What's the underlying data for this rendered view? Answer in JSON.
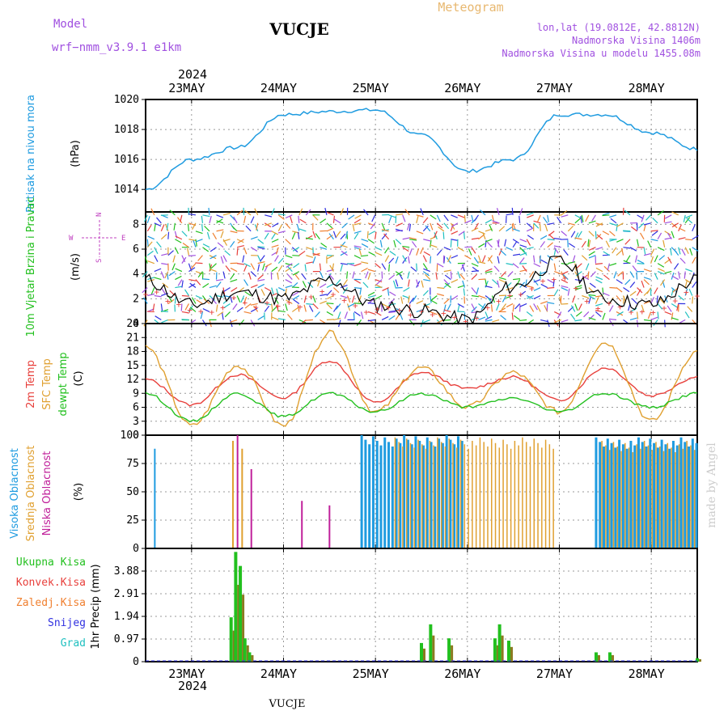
{
  "header": {
    "model_label": "Model",
    "model_name": "wrf−nmm_v3.9.1  e1km",
    "station": "VUCJE",
    "title": "Meteogram",
    "coords": "lon,lat (19.0812E, 42.8812N)",
    "elevation": "Nadmorska Visina 1406m",
    "model_elevation": "Nadmorska Visina u modelu 1455.08m",
    "footer_station": "VUCJE",
    "credit": "made by Angel",
    "year": "2024"
  },
  "colors": {
    "pressure": "#1e9be0",
    "temp2m": "#e8403c",
    "sfc_temp": "#e0a030",
    "dewpoint": "#22c01e",
    "high_cloud": "#1e9be0",
    "mid_cloud": "#e0a030",
    "low_cloud": "#c0209a",
    "total_precip": "#22c01e",
    "conv_precip": "#e8403c",
    "freezing_precip": "#f08030",
    "snow": "#3030e0",
    "hail": "#20c0c0"
  },
  "day_labels": [
    "23MAY",
    "24MAY",
    "25MAY",
    "26MAY",
    "27MAY",
    "28MAY"
  ],
  "chart_data": [
    {
      "type": "line",
      "panel": "pressure",
      "ylabel_title": "Pritisak na nivou mora",
      "ylabel_unit": "(hPa)",
      "ylim": [
        1012.5,
        1020
      ],
      "yticks": [
        "1014",
        "1016",
        "1018",
        "1020"
      ],
      "x_days": [
        22.5,
        23.0,
        23.5,
        24.0,
        24.5,
        25.0,
        25.5,
        26.0,
        26.5,
        27.0,
        27.5,
        28.0,
        28.5
      ],
      "series": [
        {
          "values": [
            1014.0,
            1016.0,
            1016.8,
            1019.0,
            1019.2,
            1019.3,
            1017.6,
            1015.2,
            1016.0,
            1019.0,
            1019.0,
            1017.8,
            1016.7
          ]
        }
      ]
    },
    {
      "type": "line",
      "panel": "wind",
      "ylabel_title": "10m Vjetar Brzina i Pravac",
      "ylabel_unit": "(m/s)",
      "compass": [
        "N",
        "W",
        "E",
        "S"
      ],
      "ylim": [
        0,
        9
      ],
      "yticks": [
        "0",
        "2",
        "4",
        "6",
        "8"
      ],
      "x_days": [
        22.5,
        23.0,
        23.5,
        24.0,
        24.5,
        25.0,
        25.5,
        26.0,
        26.5,
        27.0,
        27.5,
        28.0,
        28.5
      ],
      "series": [
        {
          "values": [
            3.5,
            1.5,
            2.5,
            2.0,
            3.5,
            1.5,
            1.0,
            0.3,
            3.0,
            5.0,
            2.0,
            1.5,
            3.5
          ]
        }
      ]
    },
    {
      "type": "line",
      "panel": "temperature",
      "ylabel_titles": [
        "2m Temp",
        "SFC Temp",
        "dewpt Temp"
      ],
      "ylabel_unit": "(C)",
      "ylim": [
        0,
        24
      ],
      "yticks": [
        "0",
        "3",
        "6",
        "9",
        "12",
        "15",
        "18",
        "21",
        "24"
      ],
      "x_days": [
        22.5,
        23.0,
        23.5,
        24.0,
        24.5,
        25.0,
        25.5,
        26.0,
        26.5,
        27.0,
        27.5,
        28.0,
        28.5
      ],
      "series": [
        {
          "key": "temp2m",
          "values": [
            12.0,
            6.5,
            13.0,
            8.0,
            16.0,
            7.0,
            13.5,
            10.0,
            12.5,
            7.5,
            14.5,
            8.5,
            12.5
          ]
        },
        {
          "key": "sfc_temp",
          "values": [
            19.0,
            2.0,
            15.0,
            2.0,
            22.0,
            5.0,
            14.5,
            6.0,
            13.5,
            5.0,
            20.0,
            3.0,
            18.0
          ]
        },
        {
          "key": "dewpoint",
          "values": [
            9.0,
            3.0,
            9.0,
            4.0,
            9.0,
            5.0,
            9.0,
            6.0,
            8.0,
            5.0,
            9.0,
            6.0,
            9.0
          ]
        }
      ]
    },
    {
      "type": "bar",
      "panel": "clouds",
      "ylabel_titles": [
        "Visoka Oblacnost",
        "Srednja Oblacnost",
        "Niska Oblacnost"
      ],
      "ylabel_unit": "(%)",
      "ylim": [
        0,
        100
      ],
      "yticks": [
        "0",
        "25",
        "50",
        "75",
        "100"
      ],
      "segments": [
        {
          "series": "high",
          "from": 24.85,
          "to": 25.95,
          "value": 100
        },
        {
          "series": "mid",
          "from": 25.2,
          "to": 26.95,
          "value": 98
        },
        {
          "series": "high",
          "from": 27.4,
          "to": 28.5,
          "value": 98
        },
        {
          "series": "mid",
          "from": 27.45,
          "to": 28.5,
          "value": 95
        }
      ],
      "isolated": [
        {
          "series": "high",
          "x": 22.6,
          "value": 88
        },
        {
          "series": "mid",
          "x": 23.45,
          "value": 95
        },
        {
          "series": "low",
          "x": 23.5,
          "value": 100
        },
        {
          "series": "mid",
          "x": 23.55,
          "value": 88
        },
        {
          "series": "low",
          "x": 23.65,
          "value": 70
        },
        {
          "series": "low",
          "x": 24.5,
          "value": 38
        },
        {
          "series": "low",
          "x": 24.2,
          "value": 42
        }
      ]
    },
    {
      "type": "bar",
      "panel": "precipitation",
      "legend": [
        "Ukupna Kisa",
        "Konvek.Kisa",
        "Zaledj.Kisa",
        "Snijeg",
        "Grad"
      ],
      "ylabel_unit": "1hr Precip (mm)",
      "ylim": [
        0,
        4.85
      ],
      "yticks": [
        "0",
        "0.97",
        "1.94",
        "2.91",
        "3.88"
      ],
      "bars": [
        {
          "x": 23.43,
          "value": 1.9
        },
        {
          "x": 23.48,
          "value": 4.7
        },
        {
          "x": 23.53,
          "value": 4.1
        },
        {
          "x": 23.58,
          "value": 1.0
        },
        {
          "x": 23.63,
          "value": 0.4
        },
        {
          "x": 25.5,
          "value": 0.8
        },
        {
          "x": 25.6,
          "value": 1.6
        },
        {
          "x": 25.8,
          "value": 1.0
        },
        {
          "x": 26.3,
          "value": 1.0
        },
        {
          "x": 26.35,
          "value": 1.6
        },
        {
          "x": 26.45,
          "value": 0.9
        },
        {
          "x": 27.4,
          "value": 0.4
        },
        {
          "x": 27.55,
          "value": 0.4
        },
        {
          "x": 28.5,
          "value": 0.15
        }
      ]
    }
  ]
}
